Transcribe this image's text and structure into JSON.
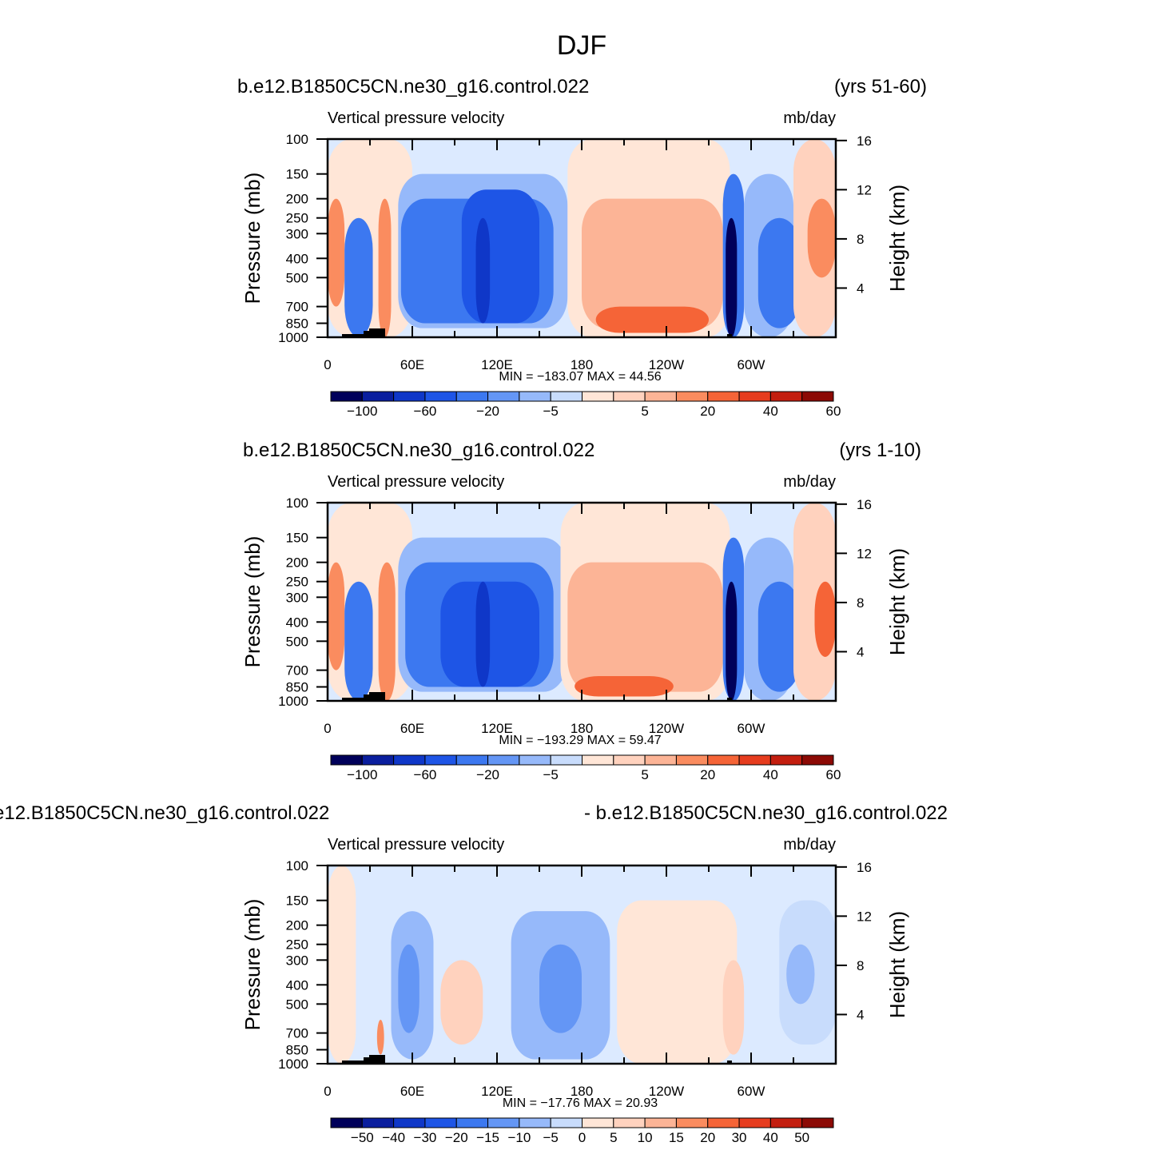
{
  "figure_title": "DJF",
  "colors": {
    "cb1": [
      "#00005a",
      "#0a1e9e",
      "#0f37c8",
      "#1e55e6",
      "#3c78f0",
      "#6496f5",
      "#96b9fa",
      "#c8dcfc",
      "#dceaff",
      "#ffe6d7",
      "#ffd2be",
      "#fcb496",
      "#fa8c5f",
      "#f56437",
      "#e63c1e",
      "#c31e0f",
      "#8c0a05"
    ],
    "cb3": [
      "#00005a",
      "#0a1e9e",
      "#0f37c8",
      "#1e55e6",
      "#3c78f0",
      "#6496f5",
      "#96b9fa",
      "#c8dcfc",
      "#dceaff",
      "#ffe6d7",
      "#ffd2be",
      "#fcb496",
      "#fa8c5f",
      "#f56437",
      "#e63c1e",
      "#c31e0f",
      "#8c0a05"
    ]
  },
  "panels": [
    {
      "left_title": "b.e12.B1850C5CN.ne30_g16.control.022",
      "right_title": "(yrs 51-60)",
      "plot_left_label": "Vertical pressure velocity",
      "plot_right_label": "mb/day",
      "ylabel_left": "Pressure (mb)",
      "ylabel_right": "Height (km)",
      "minmax_text": "MIN = −183.07   MAX =   44.56",
      "colorbar_labels": [
        "−100",
        "−60",
        "−20",
        "−5",
        "5",
        "20",
        "40",
        "60"
      ],
      "colorbar_palette": "cb1"
    },
    {
      "left_title": "b.e12.B1850C5CN.ne30_g16.control.022",
      "right_title": "(yrs 1-10)",
      "plot_left_label": "Vertical pressure velocity",
      "plot_right_label": "mb/day",
      "ylabel_left": "Pressure (mb)",
      "ylabel_right": "Height (km)",
      "minmax_text": "MIN = −193.29   MAX =   59.47",
      "colorbar_labels": [
        "−100",
        "−60",
        "−20",
        "−5",
        "5",
        "20",
        "40",
        "60"
      ],
      "colorbar_palette": "cb1"
    },
    {
      "left_title": "e12.B1850C5CN.ne30_g16.control.022",
      "right_title": "- b.e12.B1850C5CN.ne30_g16.control.022",
      "plot_left_label": "Vertical pressure velocity",
      "plot_right_label": "mb/day",
      "ylabel_left": "Pressure (mb)",
      "ylabel_right": "Height (km)",
      "minmax_text": "MIN = −17.76   MAX =   20.93",
      "colorbar_labels": [
        "−50",
        "−40",
        "−30",
        "−20",
        "−15",
        "−10",
        "−5",
        "0",
        "5",
        "10",
        "15",
        "20",
        "30",
        "40",
        "50"
      ],
      "colorbar_palette": "cb3"
    }
  ],
  "chart_data": {
    "type": "heatmap",
    "title": "DJF",
    "xlabel": "",
    "x_ticks": [
      "0",
      "60E",
      "120E",
      "180",
      "120W",
      "60W"
    ],
    "x_tick_values": [
      0,
      60,
      120,
      180,
      240,
      300
    ],
    "xlim": [
      0,
      360
    ],
    "y_left_ticks": [
      100,
      150,
      200,
      250,
      300,
      400,
      500,
      700,
      850,
      1000
    ],
    "ylim": [
      1000,
      100
    ],
    "y_left_scale": "log",
    "y_right_ticks": [
      4,
      8,
      12,
      16
    ],
    "panels": [
      {
        "description_key": "yrs 51-60",
        "min": -183.07,
        "max": 44.56,
        "levels": [
          -100,
          -80,
          -60,
          -40,
          -20,
          -10,
          -5,
          0,
          5,
          10,
          20,
          30,
          40,
          50,
          60
        ]
      },
      {
        "description_key": "yrs 1-10",
        "min": -193.29,
        "max": 59.47,
        "levels": [
          -100,
          -80,
          -60,
          -40,
          -20,
          -10,
          -5,
          0,
          5,
          10,
          20,
          30,
          40,
          50,
          60
        ]
      },
      {
        "description_key": "difference",
        "min": -17.76,
        "max": 20.93,
        "levels": [
          -50,
          -40,
          -30,
          -20,
          -15,
          -10,
          -5,
          0,
          5,
          10,
          15,
          20,
          30,
          40,
          50
        ]
      }
    ]
  }
}
